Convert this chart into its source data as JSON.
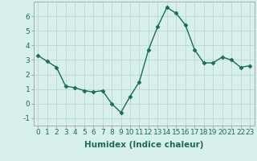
{
  "x": [
    0,
    1,
    2,
    3,
    4,
    5,
    6,
    7,
    8,
    9,
    10,
    11,
    12,
    13,
    14,
    15,
    16,
    17,
    18,
    19,
    20,
    21,
    22,
    23
  ],
  "y": [
    3.3,
    2.9,
    2.5,
    1.2,
    1.1,
    0.9,
    0.8,
    0.9,
    0.0,
    -0.6,
    0.5,
    1.5,
    3.7,
    5.3,
    6.6,
    6.2,
    5.4,
    3.7,
    2.8,
    2.8,
    3.2,
    3.0,
    2.5,
    2.6
  ],
  "line_color": "#1a6b5a",
  "marker": "D",
  "marker_size": 2.5,
  "bg_color": "#d8f0ec",
  "grid_color": "#c0dbd6",
  "xlabel": "Humidex (Indice chaleur)",
  "xlim": [
    -0.5,
    23.5
  ],
  "ylim": [
    -1.5,
    7.0
  ],
  "yticks": [
    -1,
    0,
    1,
    2,
    3,
    4,
    5,
    6
  ],
  "xticks": [
    0,
    1,
    2,
    3,
    4,
    5,
    6,
    7,
    8,
    9,
    10,
    11,
    12,
    13,
    14,
    15,
    16,
    17,
    18,
    19,
    20,
    21,
    22,
    23
  ],
  "tick_label_size": 6.5,
  "xlabel_size": 7.5,
  "line_width": 1.0
}
